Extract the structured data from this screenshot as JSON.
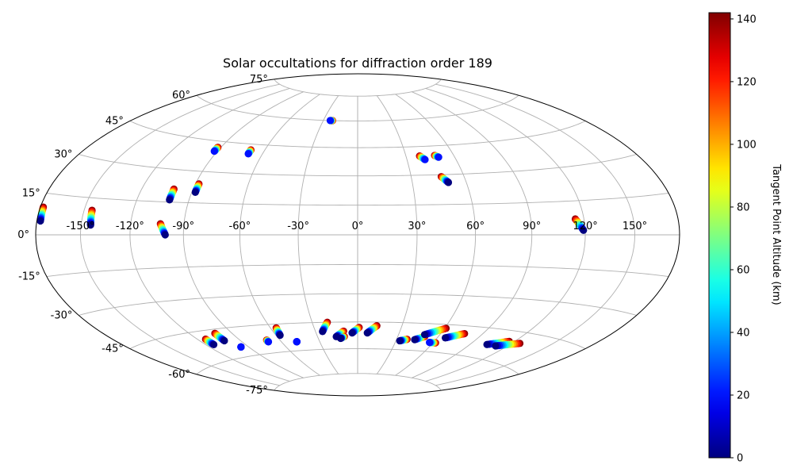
{
  "chart_data": {
    "type": "scatter",
    "projection": "hammer",
    "title": "Solar occultations for diffraction order 189",
    "xlabel": "",
    "ylabel": "",
    "grid": true,
    "lon_ticks": [
      -150,
      -120,
      -90,
      -60,
      -30,
      0,
      30,
      60,
      90,
      120,
      150
    ],
    "lon_tick_labels": [
      "-150°",
      "-120°",
      "-90°",
      "-60°",
      "-30°",
      "0°",
      "30°",
      "60°",
      "90°",
      "120°",
      "150°"
    ],
    "lat_ticks": [
      -75,
      -60,
      -45,
      -30,
      -15,
      0,
      15,
      30,
      45,
      60,
      75
    ],
    "lat_tick_labels": [
      "-75°",
      "-60°",
      "-45°",
      "-30°",
      "-15°",
      "0°",
      "15°",
      "30°",
      "45°",
      "60°",
      "75°"
    ],
    "colorbar": {
      "label": "Tangent Point Altitude (km)",
      "colormap": "jet",
      "range": [
        0,
        142
      ],
      "ticks": [
        0,
        20,
        40,
        60,
        80,
        100,
        120,
        140
      ],
      "tick_labels": [
        "0",
        "20",
        "40",
        "60",
        "80",
        "100",
        "120",
        "140"
      ]
    },
    "x_unit": "longitude (deg)",
    "y_unit": "latitude (deg)",
    "tracks": [
      {
        "start": [
          -177.5,
          5
        ],
        "end": [
          -178,
          10
        ],
        "alt": [
          0,
          140
        ]
      },
      {
        "start": [
          -144,
          4
        ],
        "end": [
          -145,
          10
        ],
        "alt": [
          0,
          140
        ]
      },
      {
        "start": [
          -100,
          0
        ],
        "end": [
          -103,
          5
        ],
        "alt": [
          0,
          140
        ]
      },
      {
        "start": [
          -101,
          16
        ],
        "end": [
          -101,
          21
        ],
        "alt": [
          0,
          140
        ]
      },
      {
        "start": [
          -88,
          20
        ],
        "end": [
          -88,
          24
        ],
        "alt": [
          0,
          140
        ]
      },
      {
        "start": [
          -92,
          40
        ],
        "end": [
          -92,
          42
        ],
        "alt": [
          20,
          140
        ]
      },
      {
        "start": [
          -69,
          40
        ],
        "end": [
          -69,
          42
        ],
        "alt": [
          20,
          140
        ]
      },
      {
        "start": [
          -24,
          60
        ],
        "end": [
          -22,
          60
        ],
        "alt": [
          20,
          140
        ]
      },
      {
        "start": [
          41,
          38
        ],
        "end": [
          38.5,
          40
        ],
        "alt": [
          20,
          140
        ]
      },
      {
        "start": [
          50,
          39
        ],
        "end": [
          48,
          40
        ],
        "alt": [
          20,
          140
        ]
      },
      {
        "start": [
          50,
          26
        ],
        "end": [
          47,
          29
        ],
        "alt": [
          0,
          140
        ]
      },
      {
        "start": [
          119,
          2
        ],
        "end": [
          115,
          7
        ],
        "alt": [
          0,
          140
        ]
      },
      {
        "start": [
          -114,
          -52
        ],
        "end": [
          -114,
          -49
        ],
        "alt": [
          0,
          140
        ]
      },
      {
        "start": [
          -102,
          -51
        ],
        "end": [
          -102,
          -47
        ],
        "alt": [
          0,
          140
        ]
      },
      {
        "start": [
          -96,
          -55
        ],
        "end": [
          -96,
          -55
        ],
        "alt": [
          20,
          20
        ]
      },
      {
        "start": [
          -70,
          -54
        ],
        "end": [
          -70,
          -53
        ],
        "alt": [
          20,
          140
        ]
      },
      {
        "start": [
          -57,
          -51
        ],
        "end": [
          -56,
          -47
        ],
        "alt": [
          0,
          140
        ]
      },
      {
        "start": [
          -48,
          -55
        ],
        "end": [
          -48,
          -55
        ],
        "alt": [
          20,
          20
        ]
      },
      {
        "start": [
          -25,
          -50
        ],
        "end": [
          -20,
          -45
        ],
        "alt": [
          0,
          140
        ]
      },
      {
        "start": [
          -16,
          -53
        ],
        "end": [
          -10,
          -50
        ],
        "alt": [
          0,
          140
        ]
      },
      {
        "start": [
          -13,
          -54
        ],
        "end": [
          -10,
          -53
        ],
        "alt": [
          0,
          140
        ]
      },
      {
        "start": [
          -4,
          -51
        ],
        "end": [
          1,
          -48
        ],
        "alt": [
          0,
          140
        ]
      },
      {
        "start": [
          7,
          -51
        ],
        "end": [
          13,
          -47
        ],
        "alt": [
          0,
          140
        ]
      },
      {
        "start": [
          33,
          -55
        ],
        "end": [
          38,
          -54
        ],
        "alt": [
          0,
          140
        ]
      },
      {
        "start": [
          44,
          -54
        ],
        "end": [
          50,
          -52
        ],
        "alt": [
          0,
          140
        ]
      },
      {
        "start": [
          49,
          -51
        ],
        "end": [
          61,
          -47
        ],
        "alt": [
          0,
          140
        ]
      },
      {
        "start": [
          57,
          -55
        ],
        "end": [
          62,
          -55
        ],
        "alt": [
          20,
          140
        ]
      },
      {
        "start": [
          66,
          -52
        ],
        "end": [
          77,
          -49
        ],
        "alt": [
          0,
          140
        ]
      },
      {
        "start": [
          103,
          -53
        ],
        "end": [
          116,
          -50
        ],
        "alt": [
          0,
          140
        ]
      },
      {
        "start": [
          111,
          -53
        ],
        "end": [
          126,
          -50
        ],
        "alt": [
          0,
          140
        ]
      }
    ]
  }
}
